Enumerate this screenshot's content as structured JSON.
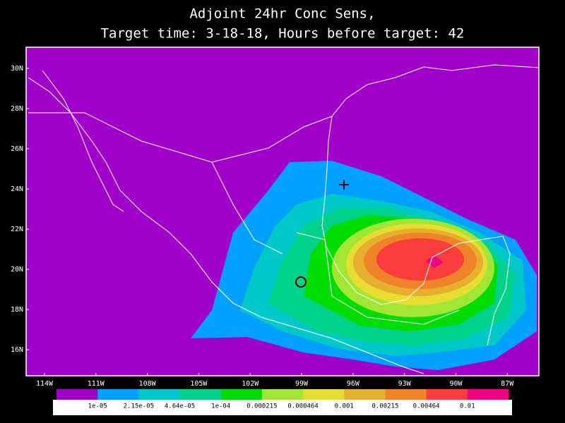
{
  "title": {
    "line1": "Adjoint 24hr Conc Sens,",
    "line2": "Target time: 3-18-18, Hours before target: 42"
  },
  "map": {
    "lat_ticks": [
      {
        "value": 30,
        "label": "30N"
      },
      {
        "value": 28,
        "label": "28N"
      },
      {
        "value": 26,
        "label": "26N"
      },
      {
        "value": 24,
        "label": "24N"
      },
      {
        "value": 22,
        "label": "22N"
      },
      {
        "value": 20,
        "label": "20N"
      },
      {
        "value": 18,
        "label": "18N"
      },
      {
        "value": 16,
        "label": "16N"
      }
    ],
    "lon_ticks": [
      {
        "value": -114,
        "label": "114W"
      },
      {
        "value": -111,
        "label": "111W"
      },
      {
        "value": -108,
        "label": "108W"
      },
      {
        "value": -105,
        "label": "105W"
      },
      {
        "value": -102,
        "label": "102W"
      },
      {
        "value": -99,
        "label": "99W"
      },
      {
        "value": -96,
        "label": "96W"
      },
      {
        "value": -93,
        "label": "93W"
      },
      {
        "value": -90,
        "label": "90W"
      },
      {
        "value": -87,
        "label": "87W"
      }
    ]
  },
  "colorbar": {
    "labels": [
      "1e-05",
      "2.15e-05",
      "4.64e-05",
      "1e-04",
      "0.000215",
      "0.000464",
      "0.001",
      "0.00215",
      "0.00464",
      "0.01"
    ],
    "colors": [
      "#a000c8",
      "#00a0ff",
      "#00c8c8",
      "#00d28c",
      "#00dc00",
      "#a0e632",
      "#e6dc32",
      "#e6af2d",
      "#f08228",
      "#fa3c3c",
      "#f00082"
    ]
  }
}
